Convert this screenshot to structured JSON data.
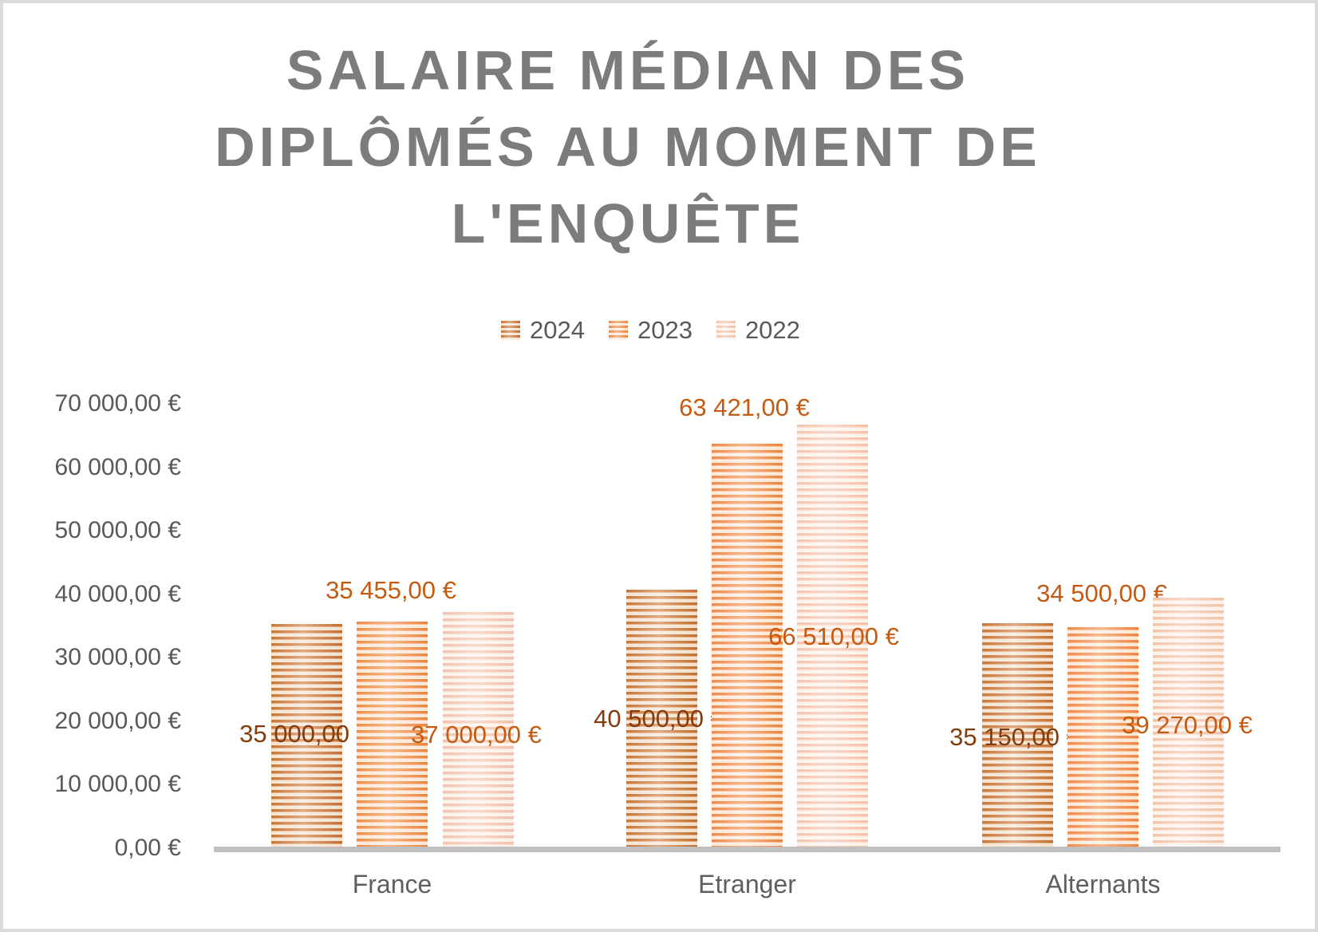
{
  "title_lines": [
    "SALAIRE MÉDIAN DES",
    "DIPLÔMÉS AU MOMENT DE",
    "L'ENQUÊTE"
  ],
  "legend": {
    "items": [
      {
        "label": "2024"
      },
      {
        "label": "2023"
      },
      {
        "label": "2022"
      }
    ]
  },
  "y_axis": {
    "tick_values": [
      0,
      10000,
      20000,
      30000,
      40000,
      50000,
      60000,
      70000
    ],
    "tick_labels": [
      "0,00 €",
      "10 000,00 €",
      "20 000,00 €",
      "30 000,00 €",
      "40 000,00 €",
      "50 000,00 €",
      "60 000,00 €",
      "70 000,00 €"
    ]
  },
  "chart_data": {
    "type": "bar",
    "title": "SALAIRE MÉDIAN DES DIPLÔMÉS AU MOMENT DE L'ENQUÊTE",
    "categories": [
      "France",
      "Etranger",
      "Alternants"
    ],
    "series": [
      {
        "name": "2024",
        "values": [
          35000,
          40500,
          35150
        ],
        "data_labels": [
          "35 000,00 €",
          "40 500,00 €",
          "35 150,00 €"
        ],
        "stripe_dark": "#C3651F",
        "stripe_light": "#F3E0CC",
        "label_color": "#843C0C"
      },
      {
        "name": "2023",
        "values": [
          35455,
          63421,
          34500
        ],
        "data_labels": [
          "35 455,00 €",
          "63 421,00 €",
          "34 500,00 €"
        ],
        "stripe_dark": "#ED7D31",
        "stripe_light": "#FBE7D5",
        "label_color": "#C55A11"
      },
      {
        "name": "2022",
        "values": [
          37000,
          66510,
          39270
        ],
        "data_labels": [
          "37 000,00 €",
          "66 510,00 €",
          "39 270,00 €"
        ],
        "stripe_dark": "#F3BCA2",
        "stripe_light": "#FCF1EA",
        "label_color": "#C55A11"
      }
    ],
    "xlabel": "",
    "ylabel": "",
    "ylim": [
      0,
      70000
    ],
    "ytick_step": 10000,
    "grid": false,
    "legend_position": "top-center",
    "bar_pattern": "horizontal-stripes"
  },
  "colors": {
    "title": "#7C7C7C",
    "axis_text": "#595959",
    "category_text": "#5F5F5F",
    "axis_line": "#C0C0C0",
    "border": "#DBDBDB",
    "background": "#FFFFFF"
  }
}
